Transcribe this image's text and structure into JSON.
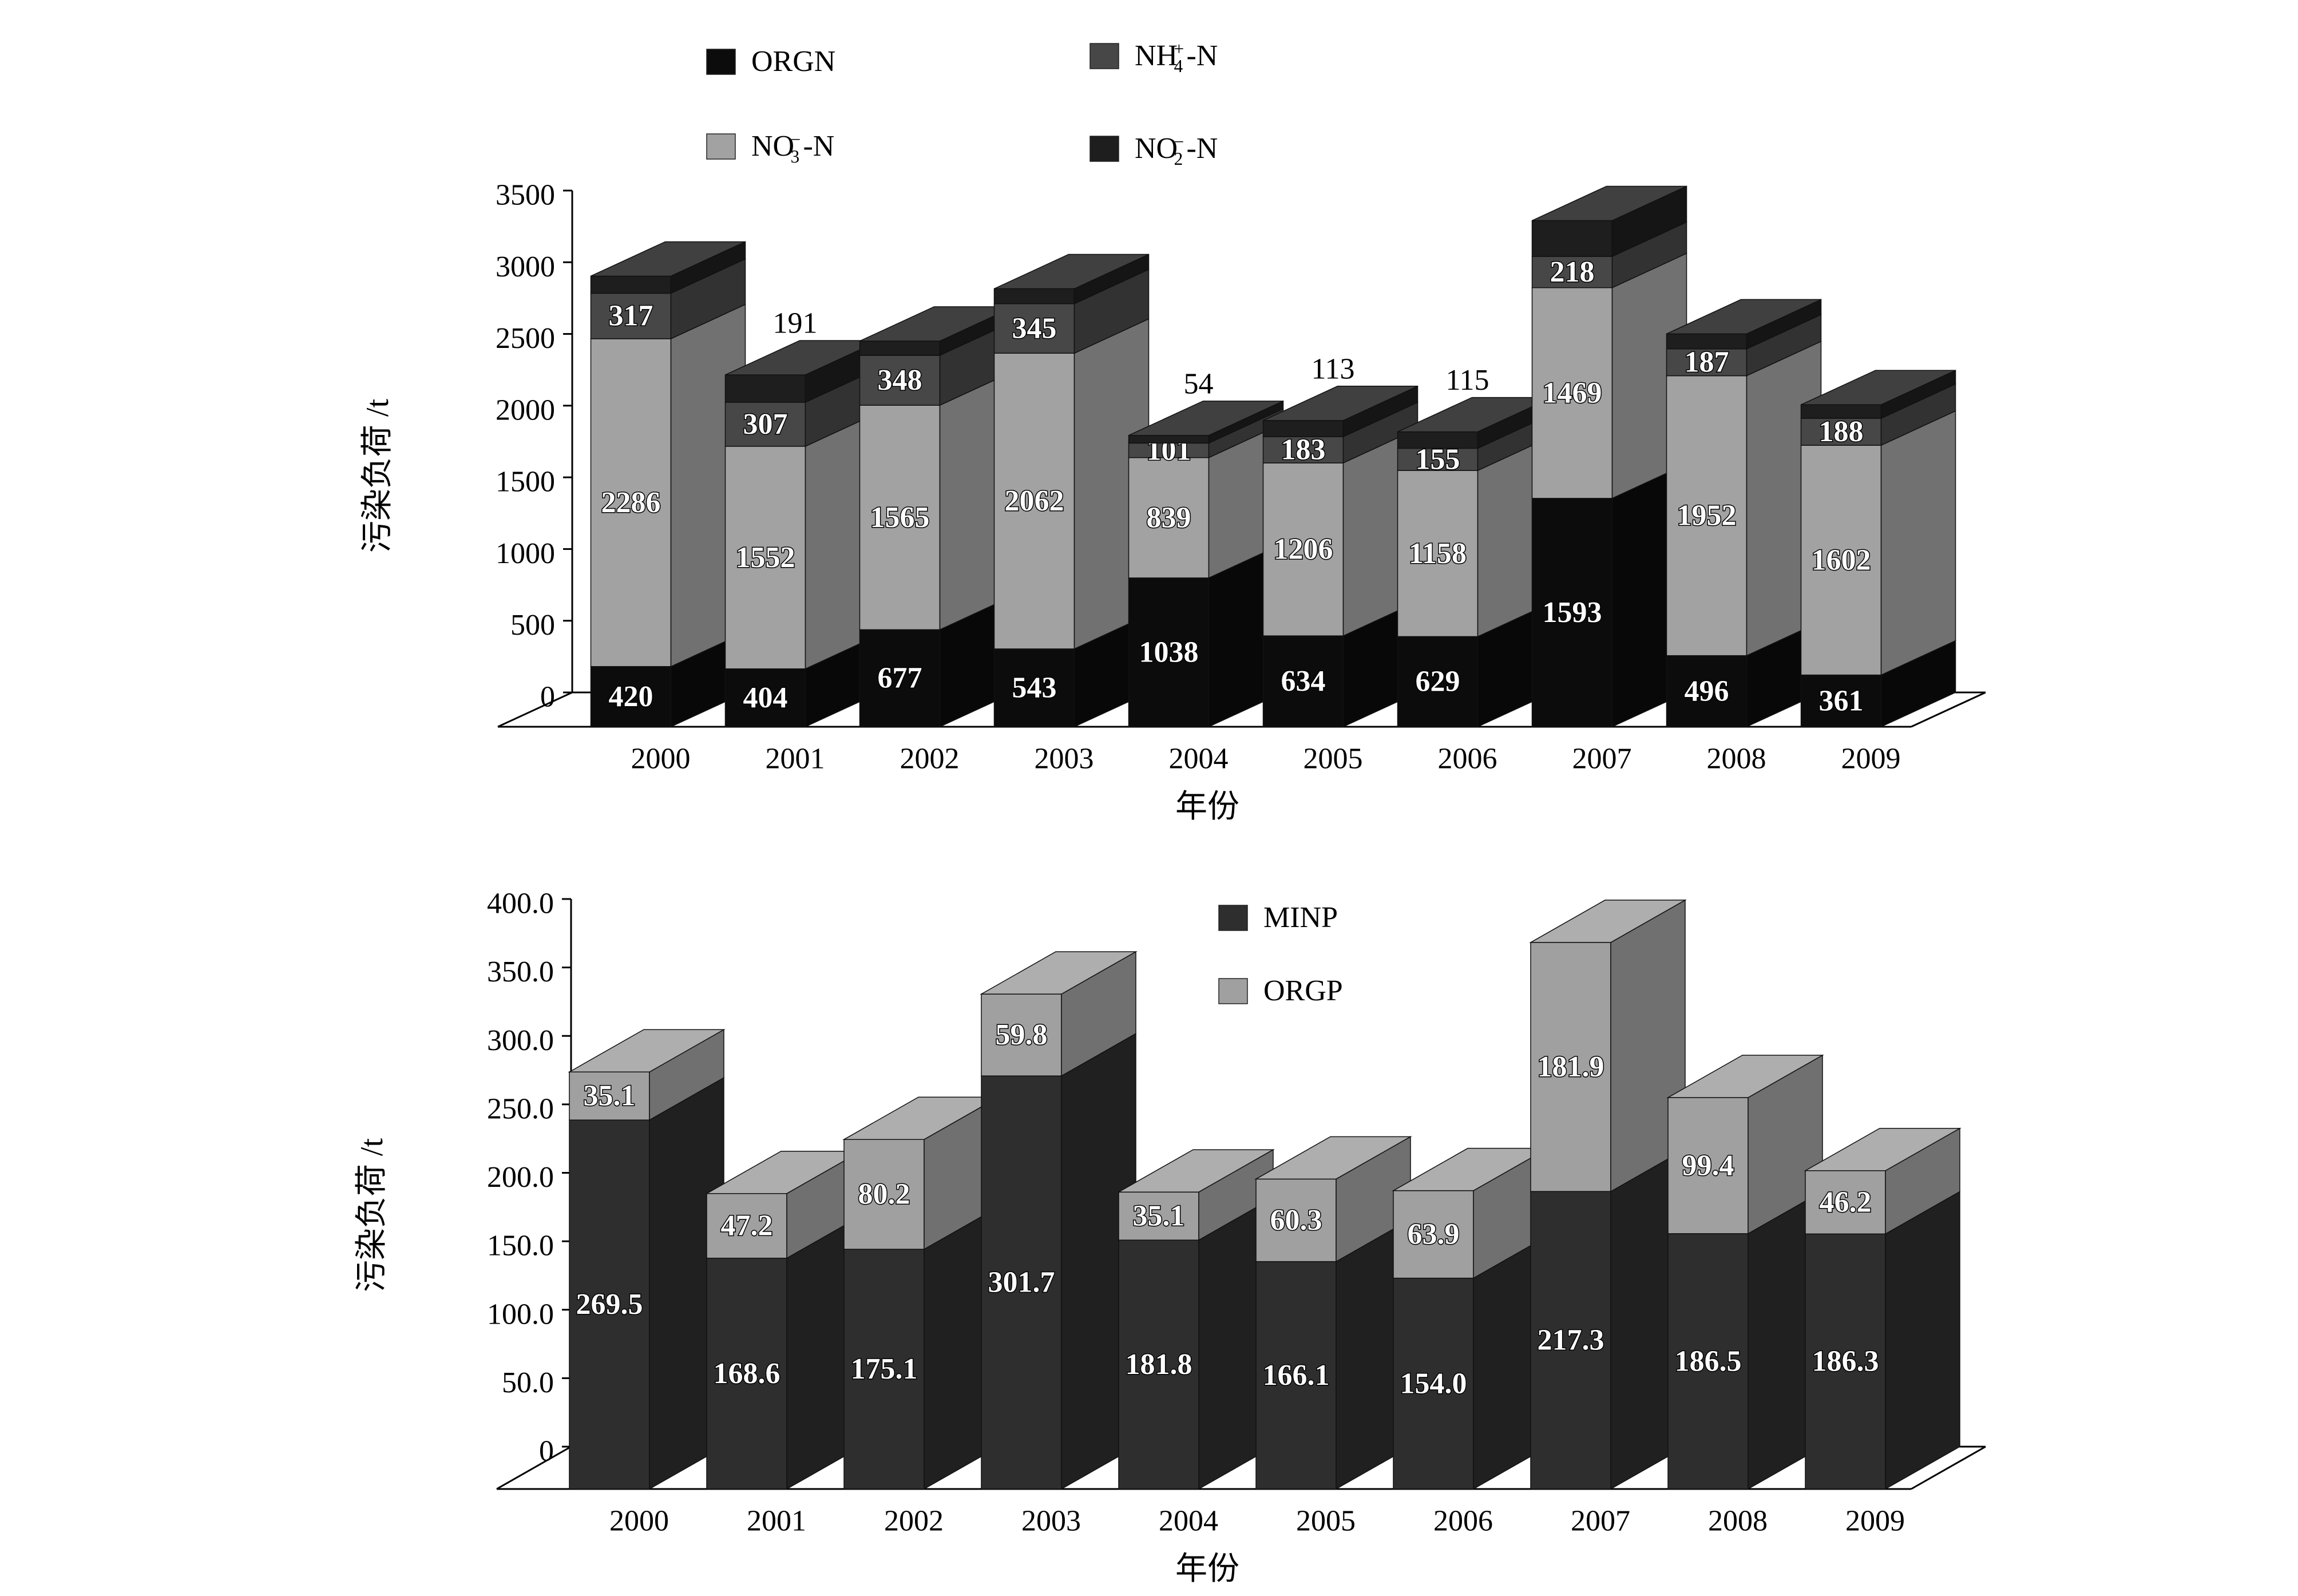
{
  "colors": {
    "orgn": "#0c0c0c",
    "nh4": "#474747",
    "no3": "#a2a2a2",
    "no2": "#1e1e1e",
    "minp": "#2e2e2e",
    "orgp": "#a0a0a0",
    "axis": "#000000",
    "label_fill": "#ffffff",
    "label_stroke": "#000000",
    "top_label": "#000000"
  },
  "chart_data": [
    {
      "type": "bar",
      "stacked": true,
      "three_d": true,
      "ylabel": "污染负荷 /t",
      "xlabel": "年份",
      "ylim": [
        0,
        3500
      ],
      "yticks": [
        "0",
        "500",
        "1000",
        "1500",
        "2000",
        "2500",
        "3000",
        "3500"
      ],
      "categories": [
        "2000",
        "2001",
        "2002",
        "2003",
        "2004",
        "2005",
        "2006",
        "2007",
        "2008",
        "2009"
      ],
      "legend": [
        {
          "key": "orgn",
          "text": "ORGN",
          "base": "ORGN",
          "sup": "",
          "sub": "",
          "suffix": ""
        },
        {
          "key": "nh4",
          "text": "NH4+-N",
          "base": "NH",
          "sup": "+",
          "sub": "4",
          "suffix": "-N"
        },
        {
          "key": "no3",
          "text": "NO3--N",
          "base": "NO",
          "sup": "−",
          "sub": "3",
          "suffix": "-N"
        },
        {
          "key": "no2",
          "text": "NO2--N",
          "base": "NO",
          "sup": "−",
          "sub": "2",
          "suffix": "-N"
        }
      ],
      "series": [
        {
          "name": "ORGN",
          "key": "orgn",
          "values": [
            420,
            404,
            677,
            543,
            1038,
            634,
            629,
            1593,
            496,
            361
          ],
          "labels": [
            "420",
            "404",
            "677",
            "543",
            "1038",
            "634",
            "629",
            "1593",
            "496",
            "361"
          ]
        },
        {
          "name": "NO3--N",
          "key": "no3",
          "values": [
            2286,
            1552,
            1565,
            2062,
            839,
            1206,
            1158,
            1469,
            1952,
            1602
          ],
          "labels": [
            "2286",
            "1552",
            "1565",
            "2062",
            "839",
            "1206",
            "1158",
            "1469",
            "1952",
            "1602"
          ]
        },
        {
          "name": "NH4+-N",
          "key": "nh4",
          "values": [
            317,
            307,
            348,
            345,
            101,
            183,
            155,
            218,
            187,
            188
          ],
          "labels": [
            "317",
            "307",
            "348",
            "345",
            "101",
            "183",
            "155",
            "218",
            "187",
            "188"
          ]
        },
        {
          "name": "NO2--N",
          "key": "no2",
          "values": [
            120,
            191,
            100,
            105,
            54,
            113,
            115,
            250,
            105,
            95
          ],
          "labels": [
            "",
            "191",
            "",
            "",
            "54",
            "113",
            "115",
            "",
            "",
            ""
          ]
        }
      ]
    },
    {
      "type": "bar",
      "stacked": true,
      "three_d": true,
      "ylabel": "污染负荷 /t",
      "xlabel": "年份",
      "ylim": [
        0,
        400
      ],
      "yticks": [
        "0",
        "50.0",
        "100.0",
        "150.0",
        "200.0",
        "250.0",
        "300.0",
        "350.0",
        "400.0"
      ],
      "categories": [
        "2000",
        "2001",
        "2002",
        "2003",
        "2004",
        "2005",
        "2006",
        "2007",
        "2008",
        "2009"
      ],
      "legend": [
        {
          "key": "minp",
          "text": "MINP",
          "base": "MINP",
          "sup": "",
          "sub": "",
          "suffix": ""
        },
        {
          "key": "orgp",
          "text": "ORGP",
          "base": "ORGP",
          "sup": "",
          "sub": "",
          "suffix": ""
        }
      ],
      "series": [
        {
          "name": "MINP",
          "key": "minp",
          "values": [
            269.5,
            168.6,
            175.1,
            301.7,
            181.8,
            166.1,
            154.0,
            217.3,
            186.5,
            186.3
          ],
          "labels": [
            "269.5",
            "168.6",
            "175.1",
            "301.7",
            "181.8",
            "166.1",
            "154.0",
            "217.3",
            "186.5",
            "186.3"
          ]
        },
        {
          "name": "ORGP",
          "key": "orgp",
          "values": [
            35.1,
            47.2,
            80.2,
            59.8,
            35.1,
            60.3,
            63.9,
            181.9,
            99.4,
            46.2
          ],
          "labels": [
            "35.1",
            "47.2",
            "80.2",
            "59.8",
            "35.1",
            "60.3",
            "63.9",
            "181.9",
            "99.4",
            "46.2"
          ]
        }
      ]
    }
  ]
}
